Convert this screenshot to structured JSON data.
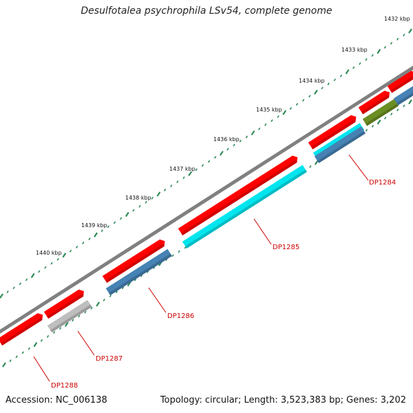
{
  "title": "Desulfotalea psychrophila LSv54, complete genome",
  "footer": {
    "accession": "Accession: NC_006138",
    "summary": "Topology: circular; Length: 3,523,383 bp; Genes: 3,202"
  },
  "colors": {
    "backbone": "#888888",
    "forward": "#ff0000",
    "cyan": "#00e5ee",
    "blue": "#4682b4",
    "grey": "#bebebe",
    "olive": "#6b8e23",
    "tick": "#2e8b57",
    "label": "#cc0000"
  },
  "ticks": [
    "1432 kbp",
    "1433 kbp",
    "1434 kbp",
    "1435 kbp",
    "1436 kbp",
    "1437 kbp",
    "1438 kbp",
    "1439 kbp",
    "1440 kbp"
  ],
  "genes": [
    {
      "label": "DP1284"
    },
    {
      "label": "DP1285"
    },
    {
      "label": "DP1286"
    },
    {
      "label": "DP1287"
    },
    {
      "label": "DP1288"
    }
  ]
}
